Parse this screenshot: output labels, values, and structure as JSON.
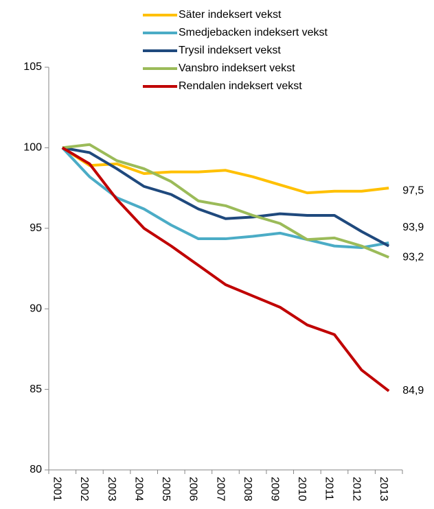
{
  "chart_data": {
    "type": "line",
    "categories": [
      "2001",
      "2002",
      "2003",
      "2004",
      "2005",
      "2006",
      "2007",
      "2008",
      "2009",
      "2010",
      "2011",
      "2012",
      "2013"
    ],
    "ylim": [
      80,
      105
    ],
    "yticks": [
      80,
      85,
      90,
      95,
      100,
      105
    ],
    "grid": false,
    "legend": "top",
    "series": [
      {
        "name": "Säter indeksert vekst",
        "color": "#ffc000",
        "values": [
          100,
          98.9,
          99.0,
          98.4,
          98.5,
          98.5,
          98.6,
          98.2,
          97.7,
          97.2,
          97.3,
          97.3,
          97.5
        ],
        "value_labels": [
          null,
          null,
          null,
          null,
          null,
          null,
          null,
          null,
          null,
          null,
          null,
          null,
          "97,5"
        ]
      },
      {
        "name": "Smedjebacken indeksert vekst",
        "color": "#4bacc6",
        "values": [
          100,
          98.2,
          96.9,
          96.2,
          95.2,
          94.35,
          94.35,
          94.5,
          94.7,
          94.3,
          93.9,
          93.8,
          94.1
        ]
      },
      {
        "name": "Trysil indeksert vekst",
        "color": "#1f497d",
        "values": [
          100,
          99.7,
          98.7,
          97.6,
          97.1,
          96.2,
          95.6,
          95.7,
          95.9,
          95.8,
          95.8,
          94.8,
          93.9
        ],
        "value_labels": [
          null,
          null,
          null,
          null,
          null,
          null,
          null,
          null,
          null,
          null,
          null,
          null,
          "93,9"
        ]
      },
      {
        "name": "Vansbro indeksert vekst",
        "color": "#9bbb59",
        "values": [
          100,
          100.2,
          99.2,
          98.7,
          97.9,
          96.7,
          96.4,
          95.8,
          95.3,
          94.3,
          94.4,
          93.9,
          93.2
        ],
        "value_labels": [
          null,
          null,
          null,
          null,
          null,
          null,
          null,
          null,
          null,
          null,
          null,
          null,
          "93,2"
        ]
      },
      {
        "name": "Rendalen indeksert vekst",
        "color": "#c00000",
        "values": [
          100,
          99.0,
          96.8,
          95.0,
          93.9,
          92.7,
          91.5,
          90.8,
          90.1,
          89.0,
          88.4,
          86.2,
          84.9
        ],
        "value_labels": [
          null,
          null,
          null,
          null,
          null,
          null,
          null,
          null,
          null,
          null,
          null,
          null,
          "84,9"
        ]
      }
    ]
  }
}
